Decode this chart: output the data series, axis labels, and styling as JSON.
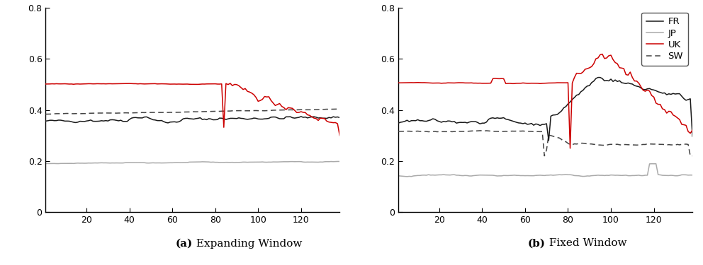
{
  "xlim": [
    1,
    138
  ],
  "ylim": [
    0,
    0.8
  ],
  "yticks": [
    0,
    0.2,
    0.4,
    0.6,
    0.8
  ],
  "xticks": [
    20,
    40,
    60,
    80,
    100,
    120
  ],
  "colors": {
    "FR": "#1a1a1a",
    "JP": "#aaaaaa",
    "UK": "#cc0000",
    "SW": "#444444"
  },
  "label_a_bold": "(a)",
  "label_a_normal": " Expanding Window",
  "label_b_bold": "(b)",
  "label_b_normal": " Fixed Window",
  "legend_labels": [
    "FR",
    "JP",
    "UK",
    "SW"
  ],
  "background": "#ffffff"
}
